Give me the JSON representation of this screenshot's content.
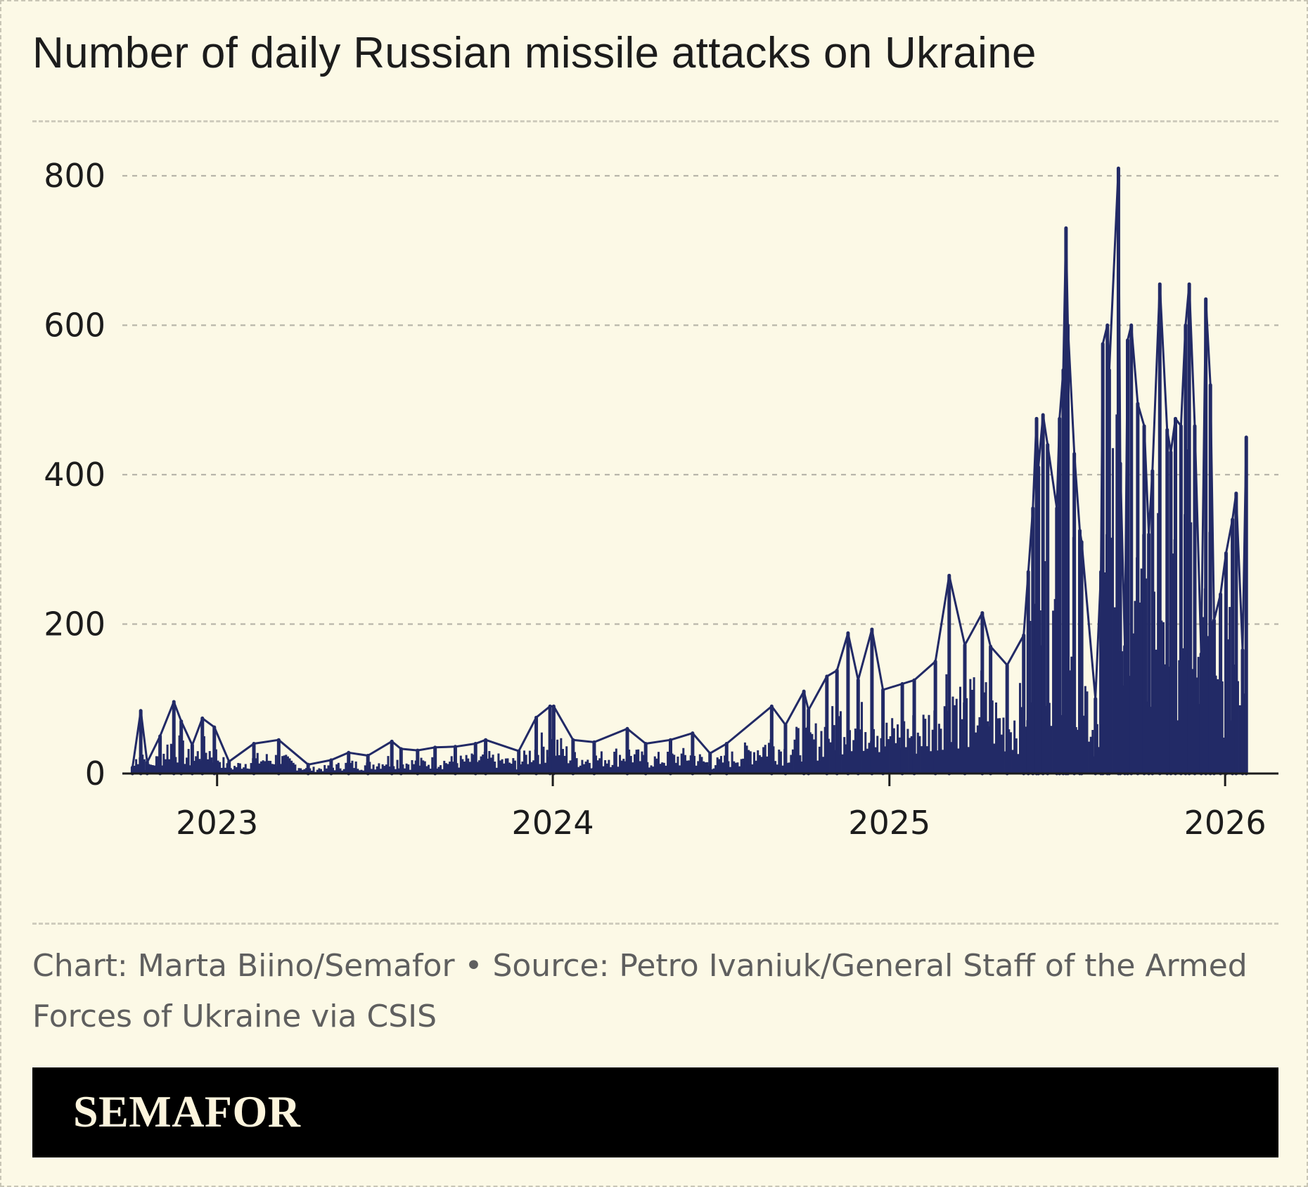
{
  "colors": {
    "background": "#fcf9e6",
    "series": "#222a66",
    "text": "#1c1c1c",
    "muted_text": "#5f5f5f",
    "grid": "#b8b6aa",
    "brand_bar": "#000000",
    "brand_text": "#fcf4dc"
  },
  "header": {
    "title": "Number of daily Russian missile attacks on Ukraine"
  },
  "footer": {
    "credit": "Chart: Marta Biino/Semafor • Source: Petro Ivaniuk/General Staff of the Armed Forces of Ukraine via CSIS",
    "logo_text": "SEMAFOR"
  },
  "chart_data": {
    "type": "bar",
    "title": "Number of daily Russian missile attacks on Ukraine",
    "xlabel": "",
    "ylabel": "",
    "x_type": "date",
    "xlim": [
      "2022-09-20",
      "2026-02-28"
    ],
    "ylim": [
      0,
      800
    ],
    "yticks": [
      0,
      200,
      400,
      600,
      800
    ],
    "ytick_labels": [
      "0",
      "200",
      "400",
      "600",
      "800"
    ],
    "xticks": [
      "2023-01-01",
      "2024-01-01",
      "2025-01-01",
      "2026-01-01"
    ],
    "xtick_labels": [
      "2023",
      "2024",
      "2025",
      "2026"
    ],
    "grid": {
      "horizontal": true,
      "vertical": false,
      "style": "dashed"
    },
    "legend": "none",
    "series": [
      {
        "values": [
          {
            "x": "2022-10-01",
            "y": 8
          },
          {
            "x": "2022-10-10",
            "y": 84
          },
          {
            "x": "2022-10-17",
            "y": 15
          },
          {
            "x": "2022-10-31",
            "y": 50
          },
          {
            "x": "2022-11-15",
            "y": 96
          },
          {
            "x": "2022-11-23",
            "y": 70
          },
          {
            "x": "2022-12-05",
            "y": 38
          },
          {
            "x": "2022-12-16",
            "y": 74
          },
          {
            "x": "2022-12-29",
            "y": 62
          },
          {
            "x": "2023-01-14",
            "y": 16
          },
          {
            "x": "2023-02-10",
            "y": 40
          },
          {
            "x": "2023-03-09",
            "y": 45
          },
          {
            "x": "2023-04-10",
            "y": 12
          },
          {
            "x": "2023-05-05",
            "y": 18
          },
          {
            "x": "2023-05-24",
            "y": 28
          },
          {
            "x": "2023-06-14",
            "y": 24
          },
          {
            "x": "2023-07-10",
            "y": 43
          },
          {
            "x": "2023-07-20",
            "y": 33
          },
          {
            "x": "2023-08-07",
            "y": 31
          },
          {
            "x": "2023-08-26",
            "y": 35
          },
          {
            "x": "2023-09-17",
            "y": 36
          },
          {
            "x": "2023-10-09",
            "y": 40
          },
          {
            "x": "2023-10-20",
            "y": 45
          },
          {
            "x": "2023-11-25",
            "y": 30
          },
          {
            "x": "2023-12-14",
            "y": 75
          },
          {
            "x": "2023-12-29",
            "y": 90
          },
          {
            "x": "2024-01-02",
            "y": 90
          },
          {
            "x": "2024-01-23",
            "y": 45
          },
          {
            "x": "2024-02-15",
            "y": 42
          },
          {
            "x": "2024-03-22",
            "y": 60
          },
          {
            "x": "2024-04-11",
            "y": 40
          },
          {
            "x": "2024-05-08",
            "y": 45
          },
          {
            "x": "2024-06-01",
            "y": 54
          },
          {
            "x": "2024-06-20",
            "y": 27
          },
          {
            "x": "2024-07-08",
            "y": 40
          },
          {
            "x": "2024-08-26",
            "y": 90
          },
          {
            "x": "2024-09-10",
            "y": 65
          },
          {
            "x": "2024-09-30",
            "y": 110
          },
          {
            "x": "2024-10-05",
            "y": 85
          },
          {
            "x": "2024-10-25",
            "y": 130
          },
          {
            "x": "2024-11-05",
            "y": 138
          },
          {
            "x": "2024-11-17",
            "y": 188
          },
          {
            "x": "2024-11-28",
            "y": 125
          },
          {
            "x": "2024-12-13",
            "y": 193
          },
          {
            "x": "2024-12-25",
            "y": 112
          },
          {
            "x": "2025-01-15",
            "y": 120
          },
          {
            "x": "2025-01-28",
            "y": 125
          },
          {
            "x": "2025-02-20",
            "y": 150
          },
          {
            "x": "2025-03-07",
            "y": 265
          },
          {
            "x": "2025-03-24",
            "y": 172
          },
          {
            "x": "2025-04-12",
            "y": 215
          },
          {
            "x": "2025-04-21",
            "y": 170
          },
          {
            "x": "2025-05-09",
            "y": 145
          },
          {
            "x": "2025-05-27",
            "y": 185
          },
          {
            "x": "2025-06-01",
            "y": 270
          },
          {
            "x": "2025-06-06",
            "y": 355
          },
          {
            "x": "2025-06-10",
            "y": 475
          },
          {
            "x": "2025-06-12",
            "y": 410
          },
          {
            "x": "2025-06-17",
            "y": 480
          },
          {
            "x": "2025-06-22",
            "y": 440
          },
          {
            "x": "2025-07-02",
            "y": 355
          },
          {
            "x": "2025-07-05",
            "y": 475
          },
          {
            "x": "2025-07-09",
            "y": 540
          },
          {
            "x": "2025-07-12",
            "y": 730
          },
          {
            "x": "2025-07-14",
            "y": 600
          },
          {
            "x": "2025-07-21",
            "y": 428
          },
          {
            "x": "2025-07-27",
            "y": 325
          },
          {
            "x": "2025-07-29",
            "y": 310
          },
          {
            "x": "2025-08-13",
            "y": 100
          },
          {
            "x": "2025-08-19",
            "y": 270
          },
          {
            "x": "2025-08-21",
            "y": 575
          },
          {
            "x": "2025-08-26",
            "y": 600
          },
          {
            "x": "2025-08-28",
            "y": 540
          },
          {
            "x": "2025-09-07",
            "y": 810
          },
          {
            "x": "2025-09-09",
            "y": 415
          },
          {
            "x": "2025-09-14",
            "y": 170
          },
          {
            "x": "2025-09-17",
            "y": 580
          },
          {
            "x": "2025-09-21",
            "y": 600
          },
          {
            "x": "2025-09-28",
            "y": 495
          },
          {
            "x": "2025-10-05",
            "y": 465
          },
          {
            "x": "2025-10-10",
            "y": 320
          },
          {
            "x": "2025-10-14",
            "y": 405
          },
          {
            "x": "2025-10-22",
            "y": 655
          },
          {
            "x": "2025-10-30",
            "y": 460
          },
          {
            "x": "2025-11-03",
            "y": 430
          },
          {
            "x": "2025-11-08",
            "y": 475
          },
          {
            "x": "2025-11-14",
            "y": 465
          },
          {
            "x": "2025-11-19",
            "y": 600
          },
          {
            "x": "2025-11-23",
            "y": 655
          },
          {
            "x": "2025-11-29",
            "y": 465
          },
          {
            "x": "2025-12-06",
            "y": 160
          },
          {
            "x": "2025-12-11",
            "y": 635
          },
          {
            "x": "2025-12-16",
            "y": 520
          },
          {
            "x": "2025-12-20",
            "y": 205
          },
          {
            "x": "2025-12-27",
            "y": 240
          },
          {
            "x": "2026-01-02",
            "y": 295
          },
          {
            "x": "2026-01-09",
            "y": 340
          },
          {
            "x": "2026-01-13",
            "y": 375
          },
          {
            "x": "2026-01-20",
            "y": 165
          },
          {
            "x": "2026-01-24",
            "y": 450
          }
        ]
      }
    ]
  }
}
